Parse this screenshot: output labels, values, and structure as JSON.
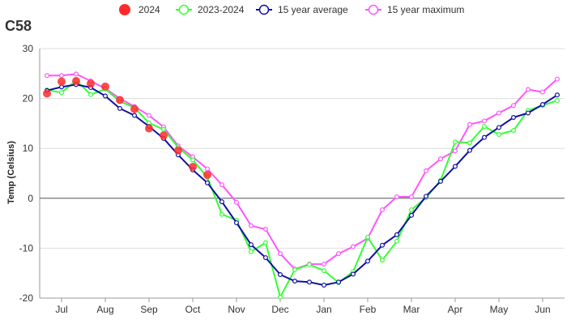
{
  "chart_data": {
    "type": "line",
    "title": "C58",
    "ylabel": "Temp (Celsius)",
    "xlabel": "",
    "ylim": [
      -20,
      30
    ],
    "yticks": [
      -20,
      -10,
      0,
      10,
      20,
      30
    ],
    "xlim": [
      0,
      35
    ],
    "month_ticks": [
      {
        "label": "Jul",
        "x": 1
      },
      {
        "label": "Aug",
        "x": 4
      },
      {
        "label": "Sep",
        "x": 7
      },
      {
        "label": "Oct",
        "x": 10
      },
      {
        "label": "Nov",
        "x": 13
      },
      {
        "label": "Dec",
        "x": 16
      },
      {
        "label": "Jan",
        "x": 19
      },
      {
        "label": "Feb",
        "x": 22
      },
      {
        "label": "Mar",
        "x": 25
      },
      {
        "label": "Apr",
        "x": 28
      },
      {
        "label": "May",
        "x": 31
      },
      {
        "label": "Jun",
        "x": 34
      }
    ],
    "grid": true,
    "legend_position": "top",
    "series": [
      {
        "name": "2024",
        "color": "#ff2b2b",
        "style": "dots",
        "x": [
          0,
          1,
          2,
          3,
          4,
          5,
          6,
          7,
          8,
          9,
          10,
          11
        ],
        "values": [
          21.0,
          23.4,
          23.5,
          23.0,
          22.4,
          19.7,
          17.9,
          14.0,
          12.6,
          9.6,
          6.3,
          4.7
        ]
      },
      {
        "name": "2023-2024",
        "color": "#33ff33",
        "style": "line",
        "x": [
          0,
          1,
          2,
          3,
          4,
          5,
          6,
          7,
          8,
          9,
          10,
          11,
          12,
          13,
          14,
          15,
          16,
          17,
          18,
          19,
          20,
          21,
          22,
          23,
          24,
          25,
          26,
          27,
          28,
          29,
          30,
          31,
          32,
          33,
          34,
          35
        ],
        "values": [
          21.7,
          21.2,
          23.6,
          20.8,
          21.9,
          19.4,
          18.2,
          15.1,
          13.8,
          10.2,
          7.7,
          4.2,
          -3.2,
          -4.4,
          -10.7,
          -8.9,
          -19.8,
          -14.3,
          -13.3,
          -14.5,
          -16.9,
          -14.7,
          -7.8,
          -12.4,
          -8.6,
          -2.3,
          0.1,
          3.6,
          11.3,
          11.1,
          14.4,
          12.8,
          13.6,
          17.6,
          18.6,
          19.6
        ]
      },
      {
        "name": "15 year average",
        "color": "#1010a0",
        "style": "line",
        "x": [
          0,
          1,
          2,
          3,
          4,
          5,
          6,
          7,
          8,
          9,
          10,
          11,
          12,
          13,
          14,
          15,
          16,
          17,
          18,
          19,
          20,
          21,
          22,
          23,
          24,
          25,
          26,
          27,
          28,
          29,
          30,
          31,
          32,
          33,
          34,
          35
        ],
        "values": [
          21.6,
          22.3,
          22.8,
          22.2,
          20.5,
          18.0,
          16.6,
          14.4,
          12.0,
          8.7,
          5.7,
          3.1,
          -0.7,
          -4.9,
          -9.3,
          -11.9,
          -15.3,
          -16.6,
          -16.8,
          -17.4,
          -16.8,
          -15.2,
          -12.6,
          -9.4,
          -7.3,
          -3.4,
          0.4,
          3.4,
          6.4,
          9.6,
          12.2,
          14.2,
          16.2,
          17.1,
          18.8,
          20.7
        ]
      },
      {
        "name": "15 year maximum",
        "color": "#ff55ff",
        "style": "line",
        "x": [
          0,
          1,
          2,
          3,
          4,
          5,
          6,
          7,
          8,
          9,
          10,
          11,
          12,
          13,
          14,
          15,
          16,
          17,
          18,
          19,
          20,
          21,
          22,
          23,
          24,
          25,
          26,
          27,
          28,
          29,
          30,
          31,
          32,
          33,
          34,
          35
        ],
        "values": [
          24.6,
          24.6,
          24.9,
          23.5,
          22.0,
          20.0,
          18.4,
          16.6,
          14.3,
          10.5,
          8.3,
          5.9,
          2.7,
          -0.8,
          -5.5,
          -6.2,
          -11.1,
          -14.2,
          -13.2,
          -13.2,
          -11.1,
          -9.7,
          -8.0,
          -2.3,
          0.3,
          0.3,
          5.5,
          7.9,
          9.5,
          14.8,
          15.5,
          17.1,
          18.6,
          21.8,
          21.3,
          23.9
        ]
      }
    ]
  }
}
